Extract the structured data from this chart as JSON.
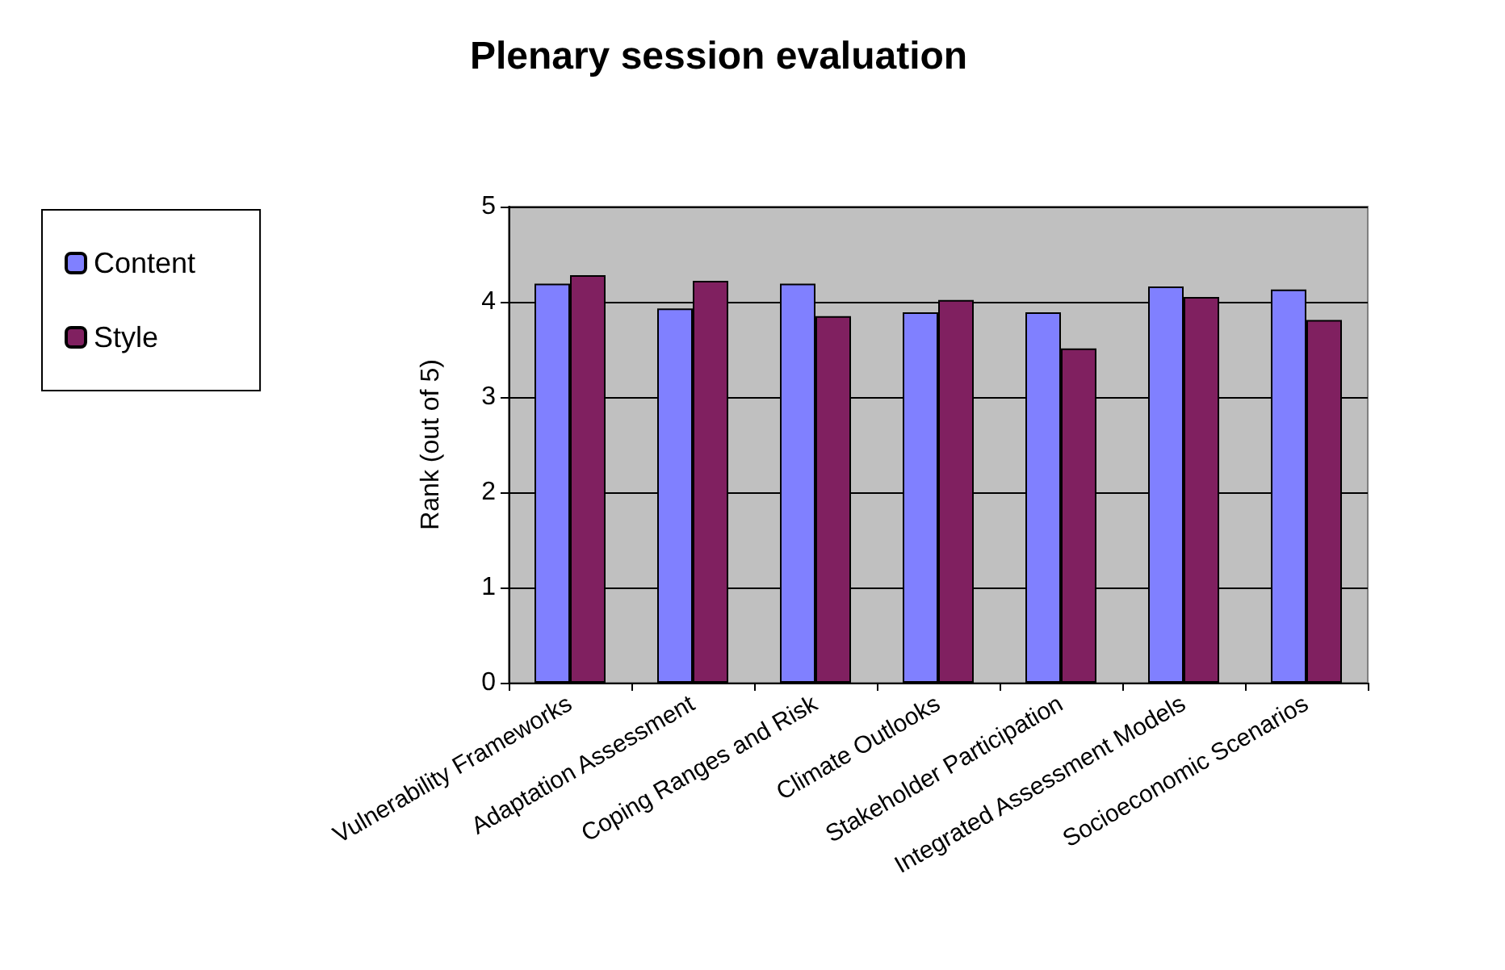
{
  "chart_data": {
    "type": "bar",
    "title": "Plenary session evaluation",
    "ylabel": "Rank (out of 5)",
    "categories": [
      "Vulnerability Frameworks",
      "Adaptation Assessment",
      "Coping Ranges and Risk",
      "Climate Outlooks",
      "Stakeholder Participation",
      "Integrated Assessment Models",
      "Socioeconomic Scenarios"
    ],
    "series": [
      {
        "name": "Content",
        "color": "#8080ff",
        "values": [
          4.19,
          3.93,
          4.19,
          3.89,
          3.89,
          4.16,
          4.13
        ]
      },
      {
        "name": "Style",
        "color": "#802060",
        "values": [
          4.28,
          4.22,
          3.85,
          4.02,
          3.51,
          4.05,
          3.81
        ]
      }
    ],
    "ylim": [
      0,
      5
    ],
    "yticks": [
      0,
      1,
      2,
      3,
      4,
      5
    ],
    "grid": "y",
    "legend": "left"
  }
}
